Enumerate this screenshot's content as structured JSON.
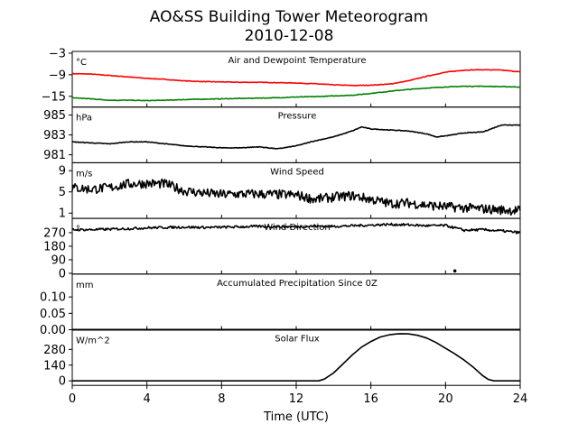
{
  "chart_data": {
    "type": "line",
    "title": "AO&SS Building Tower Meteorogram",
    "subtitle": "2010-12-08",
    "xlabel": "Time (UTC)",
    "xlim": [
      0,
      24
    ],
    "xticks": [
      0,
      4,
      8,
      12,
      16,
      20,
      24
    ],
    "panels": [
      {
        "title": "Air and Dewpoint Temperature",
        "unit": "°C",
        "ylim": [
          -18,
          -2.5
        ],
        "yticks": [
          -3,
          -9,
          -15
        ],
        "series": [
          {
            "color": "#ff0000",
            "x": [
              0,
              1,
              2,
              3,
              4,
              5,
              6,
              7,
              8,
              9,
              10,
              11,
              12,
              13,
              14,
              15,
              16,
              17,
              18,
              19,
              20,
              21,
              22,
              23,
              24
            ],
            "y": [
              -8.7,
              -8.8,
              -9.2,
              -9.6,
              -10.0,
              -10.3,
              -10.7,
              -10.9,
              -11.0,
              -11.1,
              -11.1,
              -11.2,
              -11.3,
              -11.5,
              -11.8,
              -12.0,
              -11.9,
              -11.6,
              -10.7,
              -9.4,
              -8.3,
              -7.7,
              -7.6,
              -7.7,
              -8.2
            ]
          },
          {
            "color": "#008000",
            "x": [
              0,
              1,
              2,
              3,
              4,
              5,
              6,
              7,
              8,
              9,
              10,
              11,
              12,
              13,
              14,
              15,
              16,
              17,
              18,
              19,
              20,
              21,
              22,
              23,
              24
            ],
            "y": [
              -15.4,
              -15.7,
              -16.1,
              -16.1,
              -16.2,
              -16.1,
              -15.9,
              -15.8,
              -15.7,
              -15.6,
              -15.5,
              -15.4,
              -15.2,
              -15.1,
              -14.9,
              -14.7,
              -14.2,
              -13.6,
              -13.1,
              -12.7,
              -12.4,
              -12.2,
              -12.2,
              -12.3,
              -12.4
            ]
          }
        ]
      },
      {
        "title": "Pressure",
        "unit": "hPa",
        "ylim": [
          980.2,
          985.8
        ],
        "yticks": [
          985,
          983,
          981
        ],
        "series": [
          {
            "color": "#000000",
            "x": [
              0,
              1,
              2,
              3,
              4,
              5,
              6,
              7,
              8,
              9,
              10,
              11,
              12,
              13,
              14,
              15,
              15.5,
              16,
              17,
              18,
              19,
              19.5,
              20,
              21,
              22,
              23,
              24
            ],
            "y": [
              982.3,
              982.2,
              982.1,
              982.3,
              982.3,
              982.1,
              981.9,
              981.8,
              981.7,
              981.7,
              981.8,
              981.6,
              981.9,
              982.4,
              982.8,
              983.4,
              983.8,
              983.6,
              983.5,
              983.4,
              983.1,
              982.8,
              982.9,
              983.2,
              983.3,
              984.0,
              984.0
            ]
          }
        ]
      },
      {
        "title": "Wind Speed",
        "unit": "m/s",
        "ylim": [
          0,
          10.5
        ],
        "yticks": [
          9,
          5,
          1
        ],
        "series": [
          {
            "color": "#000000",
            "x": [
              0,
              1,
              2,
              3,
              4,
              5,
              6,
              7,
              8,
              9,
              10,
              11,
              12,
              13,
              14,
              15,
              16,
              17,
              18,
              19,
              20,
              21,
              22,
              23,
              24
            ],
            "y": [
              5.8,
              5.5,
              5.8,
              6.5,
              6.6,
              6.5,
              5.2,
              4.8,
              4.5,
              4.6,
              4.6,
              4.5,
              4.4,
              3.6,
              4.0,
              4.3,
              3.6,
              2.8,
              2.9,
              2.5,
              2.2,
              2.0,
              1.8,
              1.6,
              1.5
            ]
          }
        ]
      },
      {
        "title": "Wind Direction",
        "unit": "°",
        "ylim": [
          -5,
          365
        ],
        "yticks": [
          270,
          180,
          90,
          0
        ],
        "series": [
          {
            "color": "#000000",
            "x": [
              0,
              1,
              2,
              3,
              4,
              5,
              6,
              7,
              8,
              9,
              10,
              11,
              12,
              13,
              14,
              15,
              16,
              17,
              18,
              19,
              20,
              21,
              22,
              23,
              24
            ],
            "y": [
              290,
              290,
              293,
              297,
              302,
              305,
              307,
              305,
              306,
              309,
              312,
              310,
              309,
              313,
              312,
              316,
              320,
              325,
              322,
              316,
              318,
              286,
              290,
              282,
              270
            ]
          }
        ],
        "outliers": [
          {
            "x": 20.5,
            "y": 16
          }
        ]
      },
      {
        "title": "Accumulated Precipitation Since 0Z",
        "unit": "mm",
        "ylim": [
          0,
          0.17
        ],
        "yticks": [
          0.1,
          0.05,
          0.0
        ],
        "series": [
          {
            "color": "#000000",
            "x": [
              0,
              24
            ],
            "y": [
              0,
              0
            ]
          }
        ]
      },
      {
        "title": "Solar Flux",
        "unit": "W/m^2",
        "ylim": [
          -40,
          455
        ],
        "yticks": [
          280,
          140,
          0
        ],
        "series": [
          {
            "color": "#000000",
            "x": [
              0,
              13.2,
              13.5,
              14,
              14.5,
              15,
              15.5,
              16,
              16.5,
              17,
              17.5,
              18,
              18.5,
              19,
              19.5,
              20,
              20.5,
              21,
              21.5,
              22,
              22.3,
              22.6,
              23,
              24
            ],
            "y": [
              0,
              0,
              15,
              70,
              150,
              230,
              300,
              350,
              390,
              410,
              420,
              418,
              405,
              380,
              340,
              290,
              240,
              185,
              120,
              45,
              12,
              0,
              0,
              0
            ]
          }
        ]
      }
    ]
  }
}
